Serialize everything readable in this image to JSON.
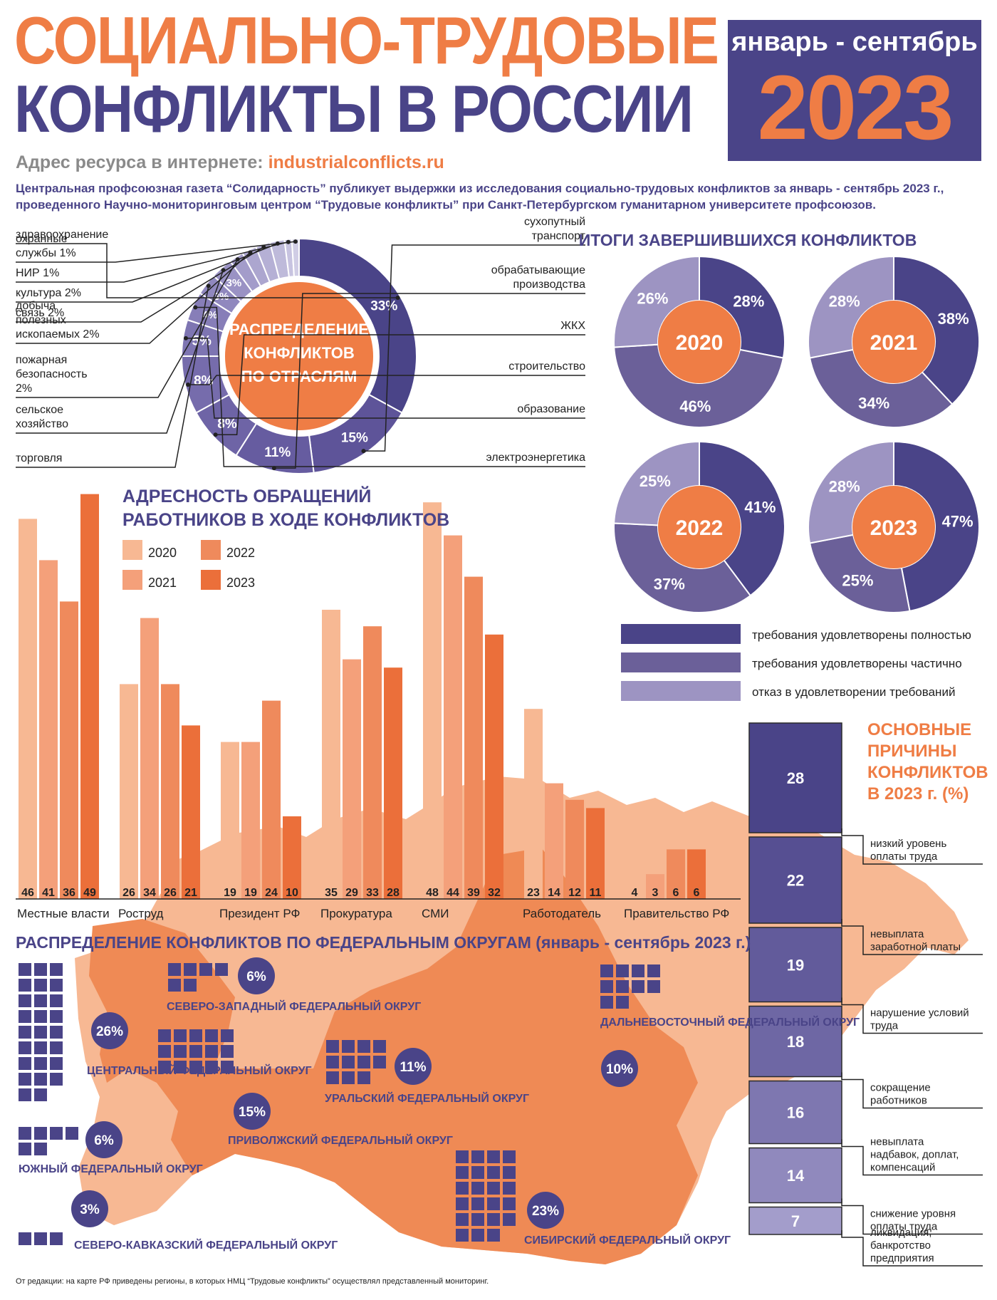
{
  "header": {
    "title_line1": "СОЦИАЛЬНО-ТРУДОВЫЕ",
    "title_line2": "КОНФЛИКТЫ В РОССИИ",
    "period": "январь - сентябрь",
    "year": "2023",
    "url_label": "Адрес ресурса в интернете:",
    "url": "industrialconflicts.ru",
    "intro": "Центральная профсоюзная газета “Солидарность” публикует выдержки из исследования социально-трудовых конфликтов за январь - сентябрь 2023 г., проведенного Научно-мониторинговым центром “Трудовые конфликты” при Санкт-Петербургском гуманитарном университете профсоюзов."
  },
  "colors": {
    "orange": "#ef7d45",
    "purple": "#4a4488",
    "purple_mid": "#6b6099",
    "purple_light": "#9d94c2",
    "bar_2020": "#f7b893",
    "bar_2021": "#f4a07a",
    "bar_2022": "#ef8a5c",
    "bar_2023": "#eb6f3a",
    "map_light": "#f7b893",
    "map_dark": "#ef8a55"
  },
  "chart_data": [
    {
      "id": "sectors",
      "type": "pie",
      "title_lines": [
        "РАСПРЕДЕЛЕНИЕ",
        "КОНФЛИКТОВ",
        "ПО ОТРАСЛЯМ"
      ],
      "slices": [
        {
          "label": "здравоохранение",
          "value": 33,
          "value_label": "33%"
        },
        {
          "label": "сухопутный транспорт",
          "value": 15,
          "value_label": "15%"
        },
        {
          "label": "обрабатывающие производства",
          "value": 11,
          "value_label": "11%"
        },
        {
          "label": "ЖКХ",
          "value": 8,
          "value_label": "8%"
        },
        {
          "label": "строительство",
          "value": 8,
          "value_label": "8%"
        },
        {
          "label": "образование",
          "value": 5,
          "value_label": "5%"
        },
        {
          "label": "электроэнергетика",
          "value": 4,
          "value_label": "4%"
        },
        {
          "label": "торговля",
          "value": 3,
          "value_label": "3%"
        },
        {
          "label": "сельское хозяйство",
          "value": 3,
          "value_label": "3%"
        },
        {
          "label": "пожарная безопасность 2%",
          "value": 2,
          "value_label": ""
        },
        {
          "label": "добыча полезных ископаемых 2%",
          "value": 2,
          "value_label": ""
        },
        {
          "label": "связь 2%",
          "value": 2,
          "value_label": ""
        },
        {
          "label": "культура 2%",
          "value": 2,
          "value_label": ""
        },
        {
          "label": "НИР 1%",
          "value": 1,
          "value_label": ""
        },
        {
          "label": "охранные службы 1%",
          "value": 1,
          "value_label": ""
        }
      ]
    },
    {
      "id": "outcomes",
      "type": "pie",
      "title": "ИТОГИ ЗАВЕРШИВШИХСЯ КОНФЛИКТОВ",
      "legend": [
        "требования удовлетворены полностью",
        "требования удовлетворены частично",
        "отказ в удовлетворении  требований"
      ],
      "years": [
        {
          "year": "2020",
          "values": [
            28,
            46,
            26
          ]
        },
        {
          "year": "2021",
          "values": [
            38,
            34,
            28
          ]
        },
        {
          "year": "2022",
          "values": [
            41,
            37,
            25
          ]
        },
        {
          "year": "2023",
          "values": [
            47,
            25,
            28
          ]
        }
      ]
    },
    {
      "id": "addressees",
      "type": "bar",
      "title_lines": [
        "АДРЕСНОСТЬ ОБРАЩЕНИЙ",
        "РАБОТНИКОВ В ХОДЕ КОНФЛИКТОВ"
      ],
      "categories": [
        "Местные власти",
        "Роструд",
        "Президент РФ",
        "Прокуратура",
        "СМИ",
        "Работодатель",
        "Правительство РФ"
      ],
      "series": [
        {
          "name": "2020",
          "values": [
            46,
            26,
            19,
            35,
            48,
            23,
            4
          ]
        },
        {
          "name": "2021",
          "values": [
            41,
            34,
            19,
            29,
            44,
            14,
            3
          ]
        },
        {
          "name": "2022",
          "values": [
            36,
            26,
            24,
            33,
            39,
            12,
            6
          ]
        },
        {
          "name": "2023",
          "values": [
            49,
            21,
            10,
            28,
            32,
            11,
            6
          ]
        }
      ]
    },
    {
      "id": "reasons",
      "type": "bar",
      "title_lines": [
        "ОСНОВНЫЕ",
        "ПРИЧИНЫ",
        "КОНФЛИКТОВ",
        "В 2023 г. (%)"
      ],
      "categories": [
        "низкий уровень оплаты труда",
        "невыплата заработной платы",
        "нарушение условий труда",
        "сокращение работников",
        "невыплата надбавок, доплат, компенсаций",
        "снижение уровня оплаты труда",
        "ликвидация, банкротство предприятия"
      ],
      "values": [
        28,
        22,
        19,
        18,
        16,
        14,
        7
      ]
    },
    {
      "id": "districts",
      "type": "table",
      "title": "РАСПРЕДЕЛЕНИЕ КОНФЛИКТОВ ПО ФЕДЕРАЛЬНЫМ ОКРУГАМ (январь - сентябрь 2023 г.)",
      "rows": [
        {
          "name": "ЦЕНТРАЛЬНЫЙ ФЕДЕРАЛЬНЫЙ ОКРУГ",
          "value": 26,
          "value_label": "26%"
        },
        {
          "name": "СИБИРСКИЙ ФЕДЕРАЛЬНЫЙ ОКРУГ",
          "value": 23,
          "value_label": "23%"
        },
        {
          "name": "ПРИВОЛЖСКИЙ ФЕДЕРАЛЬНЫЙ ОКРУГ",
          "value": 15,
          "value_label": "15%"
        },
        {
          "name": "УРАЛЬСКИЙ ФЕДЕРАЛЬНЫЙ ОКРУГ",
          "value": 11,
          "value_label": "11%"
        },
        {
          "name": "ДАЛЬНЕВОСТОЧНЫЙ ФЕДЕРАЛЬНЫЙ ОКРУГ",
          "value": 10,
          "value_label": "10%"
        },
        {
          "name": "СЕВЕРО-ЗАПАДНЫЙ ФЕДЕРАЛЬНЫЙ ОКРУГ",
          "value": 6,
          "value_label": "6%"
        },
        {
          "name": "ЮЖНЫЙ ФЕДЕРАЛЬНЫЙ ОКРУГ",
          "value": 6,
          "value_label": "6%"
        },
        {
          "name": "СЕВЕРО-КАВКАЗСКИЙ ФЕДЕРАЛЬНЫЙ ОКРУГ",
          "value": 3,
          "value_label": "3%"
        }
      ]
    }
  ],
  "footer": {
    "note": "От редакции: на карте РФ приведены регионы, в которых НМЦ “Трудовые конфликты” осуществлял представленный мониторинг."
  }
}
